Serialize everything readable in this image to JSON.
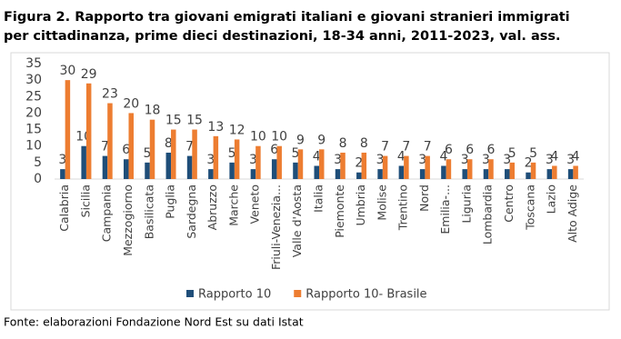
{
  "chart_data": {
    "type": "bar",
    "title": "Figura 2. Rapporto tra giovani emigrati italiani e giovani stranieri immigrati",
    "subtitle": "per cittadinanza, prime dieci destinazioni, 18-34 anni, 2011-2023, val. ass.",
    "categories": [
      "Calabria",
      "Sicilia",
      "Campania",
      "Mezzogiorno",
      "Basilicata",
      "Puglia",
      "Sardegna",
      "Abruzzo",
      "Marche",
      "Veneto",
      "Friuli-Venezia...",
      "Valle d'Aosta",
      "Italia",
      "Piemonte",
      "Umbria",
      "Molise",
      "Trentino",
      "Nord",
      "Emilia-...",
      "Liguria",
      "Lombardia",
      "Centro",
      "Toscana",
      "Lazio",
      "Alto Adige"
    ],
    "series": [
      {
        "name": "Rapporto 10",
        "color": "#1f4e79",
        "values": [
          3,
          10,
          7,
          6,
          5,
          8,
          7,
          3,
          5,
          3,
          6,
          5,
          4,
          3,
          2,
          3,
          4,
          3,
          4,
          3,
          3,
          3,
          2,
          3,
          3
        ]
      },
      {
        "name": "Rapporto 10- Brasile",
        "color": "#ed7d31",
        "values": [
          30,
          29,
          23,
          20,
          18,
          15,
          15,
          13,
          12,
          10,
          10,
          9,
          9,
          8,
          8,
          7,
          7,
          7,
          6,
          6,
          6,
          5,
          5,
          4,
          4
        ]
      }
    ],
    "ylim": [
      0,
      35
    ],
    "yticks": [
      0,
      5,
      10,
      15,
      20,
      25,
      30,
      35
    ],
    "grid": false,
    "legend": "bottom",
    "source": "Fonte: elaborazioni Fondazione Nord Est su dati Istat"
  }
}
